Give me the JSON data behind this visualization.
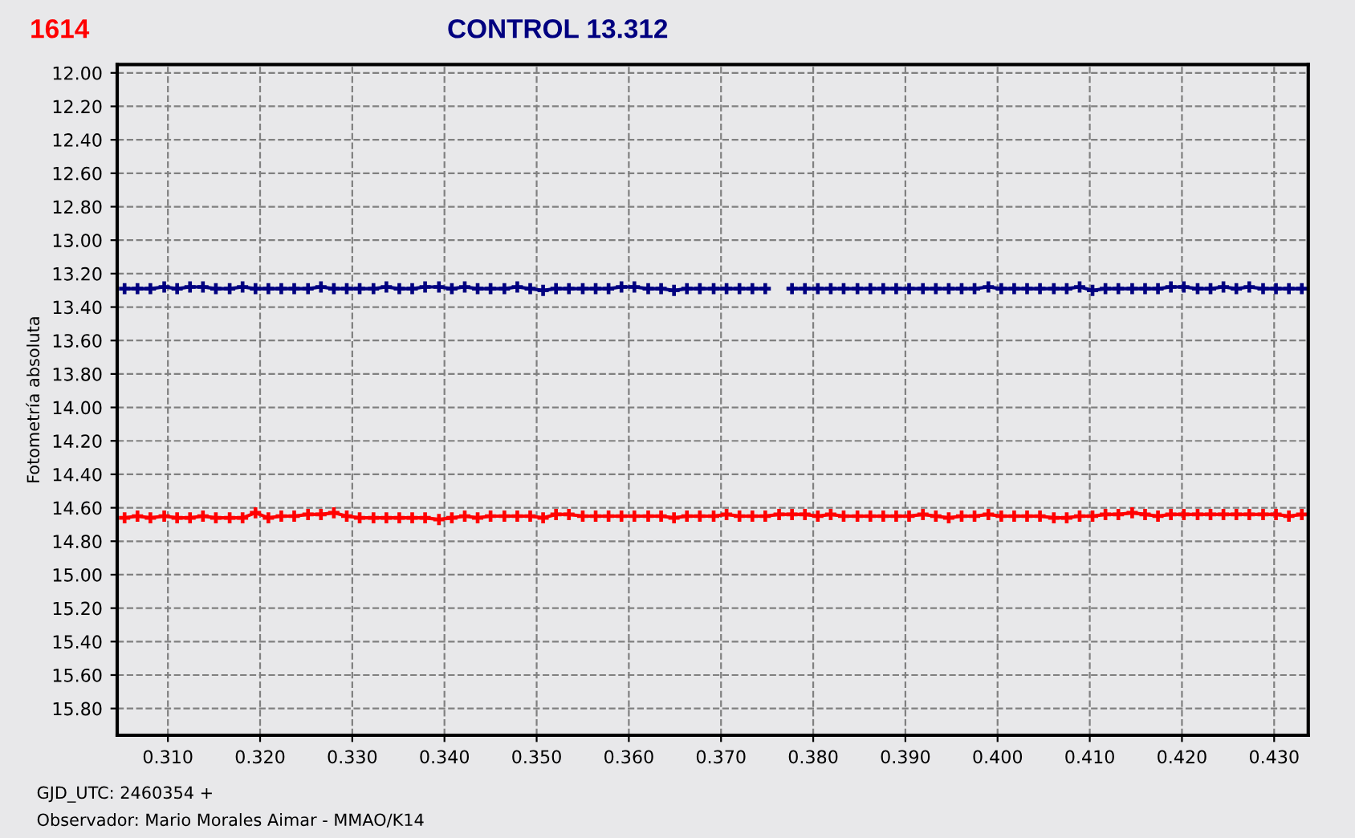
{
  "chart_data": {
    "type": "line",
    "xlabel": "GJD_UTC: 2460354 +",
    "ylabel": "Fotometría absoluta",
    "annotations": [
      "Observador: Mario Morales Aimar - MMAO/K14"
    ],
    "xlim": [
      0.3045,
      0.4337
    ],
    "ylim": [
      15.96,
      11.95
    ],
    "xticks": [
      {
        "value": 0.31,
        "label": "0.310"
      },
      {
        "value": 0.32,
        "label": "0.320"
      },
      {
        "value": 0.33,
        "label": "0.330"
      },
      {
        "value": 0.34,
        "label": "0.340"
      },
      {
        "value": 0.35,
        "label": "0.350"
      },
      {
        "value": 0.36,
        "label": "0.360"
      },
      {
        "value": 0.37,
        "label": "0.370"
      },
      {
        "value": 0.38,
        "label": "0.380"
      },
      {
        "value": 0.39,
        "label": "0.390"
      },
      {
        "value": 0.4,
        "label": "0.400"
      },
      {
        "value": 0.41,
        "label": "0.410"
      },
      {
        "value": 0.42,
        "label": "0.420"
      },
      {
        "value": 0.43,
        "label": "0.430"
      }
    ],
    "yticks": [
      {
        "value": 12.0,
        "label": "12.00"
      },
      {
        "value": 12.2,
        "label": "12.20"
      },
      {
        "value": 12.4,
        "label": "12.40"
      },
      {
        "value": 12.6,
        "label": "12.60"
      },
      {
        "value": 12.8,
        "label": "12.80"
      },
      {
        "value": 13.0,
        "label": "13.00"
      },
      {
        "value": 13.2,
        "label": "13.20"
      },
      {
        "value": 13.4,
        "label": "13.40"
      },
      {
        "value": 13.6,
        "label": "13.60"
      },
      {
        "value": 13.8,
        "label": "13.80"
      },
      {
        "value": 14.0,
        "label": "14.00"
      },
      {
        "value": 14.2,
        "label": "14.20"
      },
      {
        "value": 14.4,
        "label": "14.40"
      },
      {
        "value": 14.6,
        "label": "14.60"
      },
      {
        "value": 14.8,
        "label": "14.80"
      },
      {
        "value": 15.0,
        "label": "15.00"
      },
      {
        "value": 15.2,
        "label": "15.20"
      },
      {
        "value": 15.4,
        "label": "15.40"
      },
      {
        "value": 15.6,
        "label": "15.60"
      },
      {
        "value": 15.8,
        "label": "15.80"
      }
    ],
    "grid": true,
    "marker": "cross",
    "line_style": "solid",
    "x": [
      0.3053,
      0.3067,
      0.3081,
      0.3096,
      0.311,
      0.3124,
      0.3138,
      0.3152,
      0.3167,
      0.3181,
      0.3195,
      0.3209,
      0.3223,
      0.3237,
      0.3252,
      0.3266,
      0.328,
      0.3294,
      0.3308,
      0.3323,
      0.3337,
      0.3351,
      0.3365,
      0.3379,
      0.3394,
      0.3408,
      0.3422,
      0.3436,
      0.345,
      0.3465,
      0.3479,
      0.3493,
      0.3507,
      0.3521,
      0.3535,
      0.355,
      0.3564,
      0.3578,
      0.3592,
      0.3606,
      0.3621,
      0.3635,
      0.3649,
      0.3663,
      0.3677,
      0.3692,
      0.3706,
      0.372,
      0.3734,
      0.3748,
      0.3763,
      0.3777,
      0.3791,
      0.3805,
      0.3819,
      0.3833,
      0.3848,
      0.3862,
      0.3876,
      0.389,
      0.3904,
      0.3919,
      0.3933,
      0.3947,
      0.3961,
      0.3975,
      0.399,
      0.4004,
      0.4018,
      0.4032,
      0.4046,
      0.4061,
      0.4075,
      0.4089,
      0.4103,
      0.4117,
      0.4131,
      0.4146,
      0.416,
      0.4174,
      0.4188,
      0.4202,
      0.4217,
      0.4231,
      0.4245,
      0.4259,
      0.4273,
      0.4288,
      0.4302,
      0.4316,
      0.433
    ],
    "series": [
      {
        "name": "1614",
        "color": "#ff0000",
        "values": [
          14.66,
          14.65,
          14.66,
          14.65,
          14.66,
          14.66,
          14.65,
          14.66,
          14.66,
          14.66,
          14.63,
          14.66,
          14.65,
          14.65,
          14.64,
          14.64,
          14.63,
          14.65,
          14.66,
          14.66,
          14.66,
          14.66,
          14.66,
          14.66,
          14.67,
          14.66,
          14.65,
          14.66,
          14.65,
          14.65,
          14.65,
          14.65,
          14.66,
          14.64,
          14.64,
          14.65,
          14.65,
          14.65,
          14.65,
          14.65,
          14.65,
          14.65,
          14.66,
          14.65,
          14.65,
          14.65,
          14.64,
          14.65,
          14.65,
          14.65,
          14.64,
          14.64,
          14.64,
          14.65,
          14.64,
          14.65,
          14.65,
          14.65,
          14.65,
          14.65,
          14.65,
          14.64,
          14.65,
          14.66,
          14.65,
          14.65,
          14.64,
          14.65,
          14.65,
          14.65,
          14.65,
          14.66,
          14.66,
          14.65,
          14.65,
          14.64,
          14.64,
          14.63,
          14.64,
          14.65,
          14.64,
          14.64,
          14.64,
          14.64,
          14.64,
          14.64,
          14.64,
          14.64,
          14.64,
          14.65,
          14.64
        ]
      },
      {
        "name": "CONTROL 13.312",
        "color": "#000080",
        "values": [
          13.29,
          13.29,
          13.29,
          13.28,
          13.29,
          13.28,
          13.28,
          13.29,
          13.29,
          13.28,
          13.29,
          13.29,
          13.29,
          13.29,
          13.29,
          13.28,
          13.29,
          13.29,
          13.29,
          13.29,
          13.28,
          13.29,
          13.29,
          13.28,
          13.28,
          13.29,
          13.28,
          13.29,
          13.29,
          13.29,
          13.28,
          13.29,
          13.3,
          13.29,
          13.29,
          13.29,
          13.29,
          13.29,
          13.28,
          13.28,
          13.29,
          13.29,
          13.3,
          13.29,
          13.29,
          13.29,
          13.29,
          13.29,
          13.29,
          13.29,
          null,
          13.29,
          13.29,
          13.29,
          13.29,
          13.29,
          13.29,
          13.29,
          13.29,
          13.29,
          13.29,
          13.29,
          13.29,
          13.29,
          13.29,
          13.29,
          13.28,
          13.29,
          13.29,
          13.29,
          13.29,
          13.29,
          13.29,
          13.28,
          13.3,
          13.29,
          13.29,
          13.29,
          13.29,
          13.29,
          13.28,
          13.28,
          13.29,
          13.29,
          13.28,
          13.29,
          13.28,
          13.29,
          13.29,
          13.29,
          13.29
        ]
      }
    ]
  }
}
